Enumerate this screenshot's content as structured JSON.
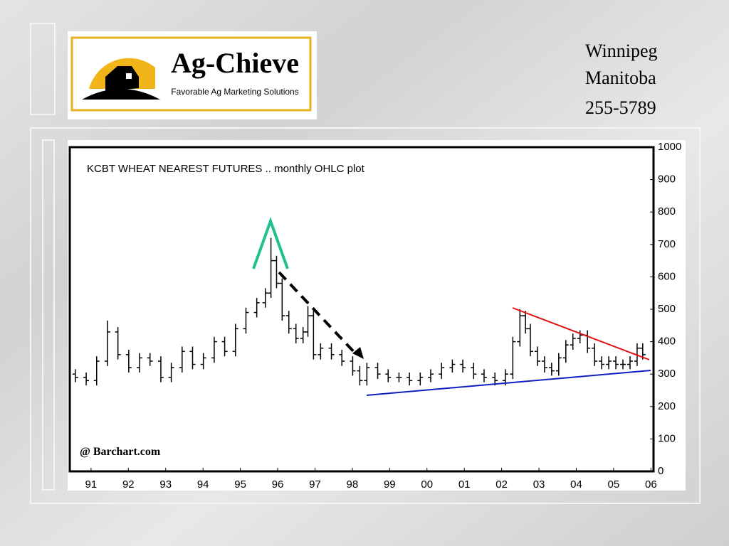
{
  "slide": {
    "logo": {
      "name": "Ag-Chieve",
      "tagline": "Favorable Ag Marketing Solutions"
    },
    "contact": [
      "Winnipeg",
      "Manitoba",
      "255-5789"
    ]
  },
  "chart_data": {
    "type": "ohlc",
    "title": "KCBT WHEAT NEAREST FUTURES .. monthly OHLC plot",
    "source": "@ Barchart.com",
    "color": "#000000",
    "x": [
      1990.58,
      1990.87,
      1991.15,
      1991.44,
      1991.72,
      1992.01,
      1992.3,
      1992.58,
      1992.87,
      1993.15,
      1993.44,
      1993.72,
      1994.01,
      1994.3,
      1994.58,
      1994.87,
      1995.15,
      1995.44,
      1995.67,
      1995.82,
      1995.97,
      1996.12,
      1996.3,
      1996.49,
      1996.68,
      1996.81,
      1996.96,
      1997.15,
      1997.44,
      1997.72,
      1998.01,
      1998.2,
      1998.39,
      1998.68,
      1998.96,
      1999.25,
      1999.53,
      1999.82,
      2000.1,
      2000.39,
      2000.68,
      2000.96,
      2001.25,
      2001.53,
      2001.82,
      2002.1,
      2002.3,
      2002.49,
      2002.64,
      2002.77,
      2002.96,
      2003.15,
      2003.34,
      2003.53,
      2003.72,
      2003.91,
      2004.1,
      2004.3,
      2004.49,
      2004.68,
      2004.87,
      2005.06,
      2005.25,
      2005.44,
      2005.63,
      2005.78
    ],
    "open": [
      300,
      290,
      280,
      340,
      430,
      360,
      320,
      350,
      340,
      290,
      320,
      370,
      330,
      350,
      400,
      370,
      440,
      490,
      520,
      550,
      650,
      580,
      480,
      440,
      410,
      430,
      480,
      360,
      380,
      360,
      340,
      310,
      280,
      320,
      300,
      290,
      290,
      280,
      290,
      300,
      320,
      330,
      320,
      300,
      290,
      280,
      300,
      400,
      480,
      440,
      370,
      340,
      320,
      310,
      350,
      390,
      410,
      420,
      380,
      340,
      330,
      340,
      330,
      330,
      340,
      380
    ],
    "high": [
      315,
      305,
      355,
      465,
      445,
      375,
      365,
      365,
      355,
      335,
      385,
      385,
      365,
      415,
      415,
      455,
      505,
      535,
      565,
      720,
      665,
      595,
      495,
      455,
      445,
      510,
      495,
      395,
      395,
      375,
      355,
      325,
      335,
      335,
      315,
      305,
      305,
      305,
      315,
      335,
      345,
      345,
      335,
      315,
      305,
      315,
      415,
      500,
      495,
      455,
      385,
      355,
      335,
      365,
      405,
      425,
      435,
      435,
      395,
      355,
      355,
      355,
      345,
      355,
      395,
      395
    ],
    "low": [
      275,
      265,
      265,
      325,
      345,
      305,
      305,
      325,
      275,
      275,
      305,
      315,
      315,
      335,
      355,
      355,
      425,
      475,
      505,
      535,
      565,
      465,
      425,
      395,
      395,
      415,
      345,
      345,
      345,
      325,
      295,
      265,
      265,
      285,
      275,
      275,
      265,
      265,
      275,
      285,
      305,
      305,
      285,
      275,
      265,
      265,
      285,
      385,
      425,
      355,
      325,
      305,
      295,
      295,
      335,
      375,
      395,
      365,
      325,
      315,
      315,
      315,
      315,
      315,
      325,
      345
    ],
    "close": [
      290,
      280,
      340,
      430,
      360,
      320,
      350,
      340,
      290,
      320,
      370,
      330,
      350,
      400,
      370,
      440,
      490,
      520,
      550,
      650,
      580,
      480,
      440,
      410,
      430,
      480,
      360,
      380,
      360,
      340,
      310,
      280,
      320,
      300,
      290,
      290,
      280,
      290,
      300,
      320,
      330,
      320,
      300,
      290,
      280,
      300,
      400,
      480,
      440,
      370,
      340,
      320,
      310,
      350,
      390,
      410,
      420,
      380,
      340,
      330,
      340,
      330,
      330,
      340,
      380,
      360
    ],
    "xlim": [
      1990.43,
      2006.07
    ],
    "ylim": [
      0,
      1000
    ],
    "yticks": [
      0,
      100,
      200,
      300,
      400,
      500,
      600,
      700,
      800,
      900,
      1000
    ],
    "xticks": [
      {
        "value": 1991,
        "label": "91"
      },
      {
        "value": 1992,
        "label": "92"
      },
      {
        "value": 1993,
        "label": "93"
      },
      {
        "value": 1994,
        "label": "94"
      },
      {
        "value": 1995,
        "label": "95"
      },
      {
        "value": 1996,
        "label": "96"
      },
      {
        "value": 1997,
        "label": "97"
      },
      {
        "value": 1998,
        "label": "98"
      },
      {
        "value": 1999,
        "label": "99"
      },
      {
        "value": 2000,
        "label": "00"
      },
      {
        "value": 2001,
        "label": "01"
      },
      {
        "value": 2002,
        "label": "02"
      },
      {
        "value": 2003,
        "label": "03"
      },
      {
        "value": 2004,
        "label": "04"
      },
      {
        "value": 2005,
        "label": "05"
      },
      {
        "value": 2006,
        "label": "06"
      }
    ]
  }
}
